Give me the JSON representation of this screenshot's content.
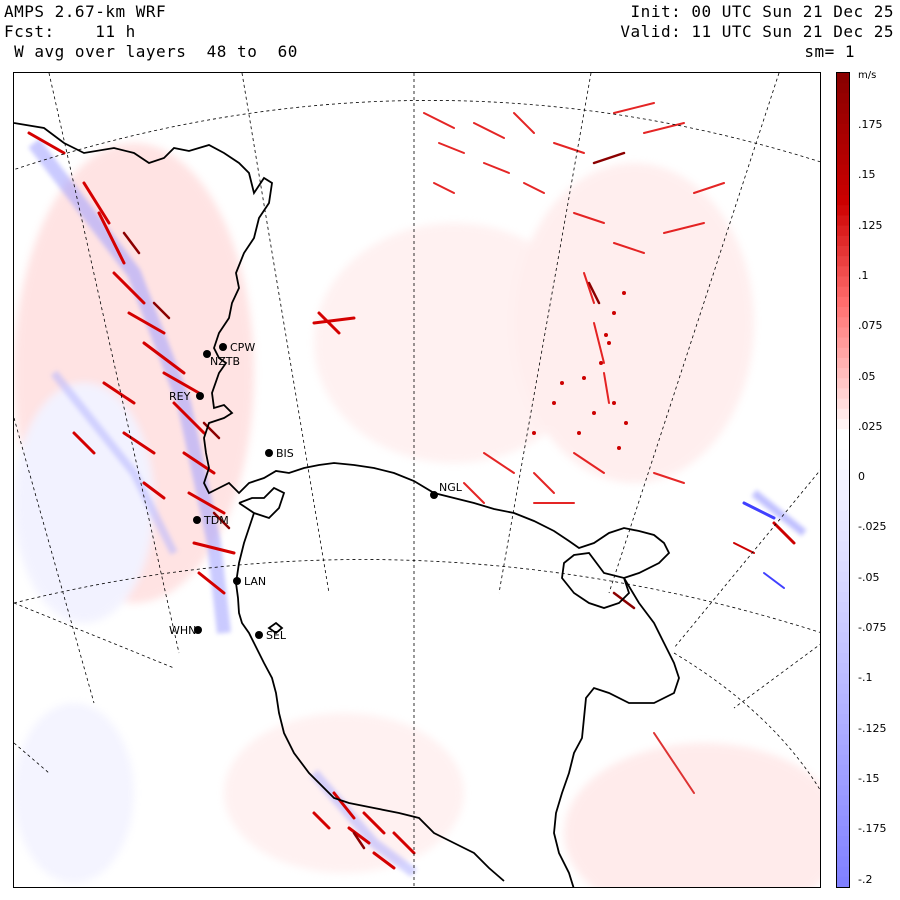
{
  "header": {
    "model": "AMPS 2.67-km WRF",
    "fcst": "Fcst:    11 h",
    "field": " W avg over layers  48 to  60",
    "init": "Init: 00 UTC Sun 21 Dec 25",
    "valid": "Valid: 11 UTC Sun 21 Dec 25",
    "smooth": "sm= 1"
  },
  "colorbar": {
    "unit": "m/s",
    "labels": [
      ".175",
      ".15",
      ".125",
      ".1",
      ".075",
      ".05",
      ".025",
      "0",
      "-.025",
      "-.05",
      "-.075",
      "-.1",
      "-.125",
      "-.15",
      "-.175",
      "-.2"
    ],
    "range": [
      -0.2,
      0.2
    ],
    "positive_color": "#8b0000",
    "negative_color": "#8080ff"
  },
  "stations": [
    {
      "code": "CPW"
    },
    {
      "code": "NZTB"
    },
    {
      "code": "REY"
    },
    {
      "code": "BIS"
    },
    {
      "code": "NGL"
    },
    {
      "code": "TDM"
    },
    {
      "code": "LAN"
    },
    {
      "code": "WHN"
    },
    {
      "code": "SEL"
    }
  ]
}
